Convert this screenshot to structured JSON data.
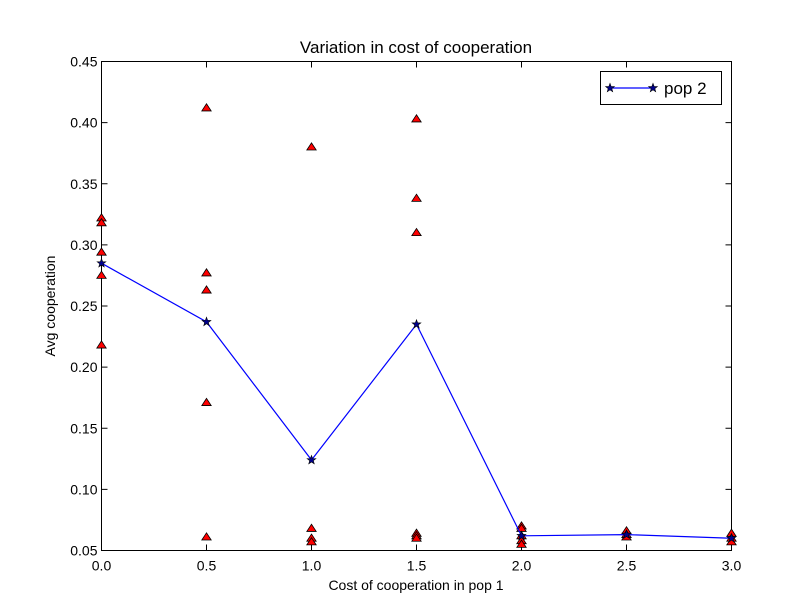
{
  "chart_data": {
    "type": "line",
    "title": "Variation in cost of cooperation",
    "xlabel": "Cost of cooperation in pop 1",
    "ylabel": "Avg cooperation",
    "xlim": [
      0.0,
      3.0
    ],
    "ylim": [
      0.05,
      0.45
    ],
    "xticks": [
      "0.0",
      "0.5",
      "1.0",
      "1.5",
      "2.0",
      "2.5",
      "3.0"
    ],
    "yticks": [
      "0.05",
      "0.10",
      "0.15",
      "0.20",
      "0.25",
      "0.30",
      "0.35",
      "0.40",
      "0.45"
    ],
    "grid": false,
    "legend_position": "top-right",
    "series": [
      {
        "name": "pop 2",
        "kind": "line",
        "marker": "star",
        "color": "#0000ff",
        "x": [
          0.0,
          0.5,
          1.0,
          1.5,
          2.0,
          2.5,
          3.0
        ],
        "values": [
          0.285,
          0.237,
          0.124,
          0.235,
          0.062,
          0.063,
          0.06
        ]
      },
      {
        "kind": "scatter",
        "marker": "triangle",
        "color": "#ff0000",
        "x": [
          0.0,
          0.0,
          0.0,
          0.0,
          0.0,
          0.5,
          0.5,
          0.5,
          0.5,
          0.5,
          1.0,
          1.0,
          1.0,
          1.0,
          1.5,
          1.5,
          1.5,
          1.5,
          1.5,
          1.5,
          2.0,
          2.0,
          2.0,
          2.0,
          2.0,
          2.5,
          2.5,
          2.5,
          3.0,
          3.0,
          3.0
        ],
        "values": [
          0.322,
          0.318,
          0.294,
          0.275,
          0.218,
          0.412,
          0.277,
          0.263,
          0.171,
          0.061,
          0.38,
          0.068,
          0.06,
          0.057,
          0.403,
          0.338,
          0.31,
          0.064,
          0.062,
          0.06,
          0.07,
          0.068,
          0.062,
          0.058,
          0.055,
          0.066,
          0.063,
          0.061,
          0.064,
          0.06,
          0.057
        ]
      }
    ]
  }
}
